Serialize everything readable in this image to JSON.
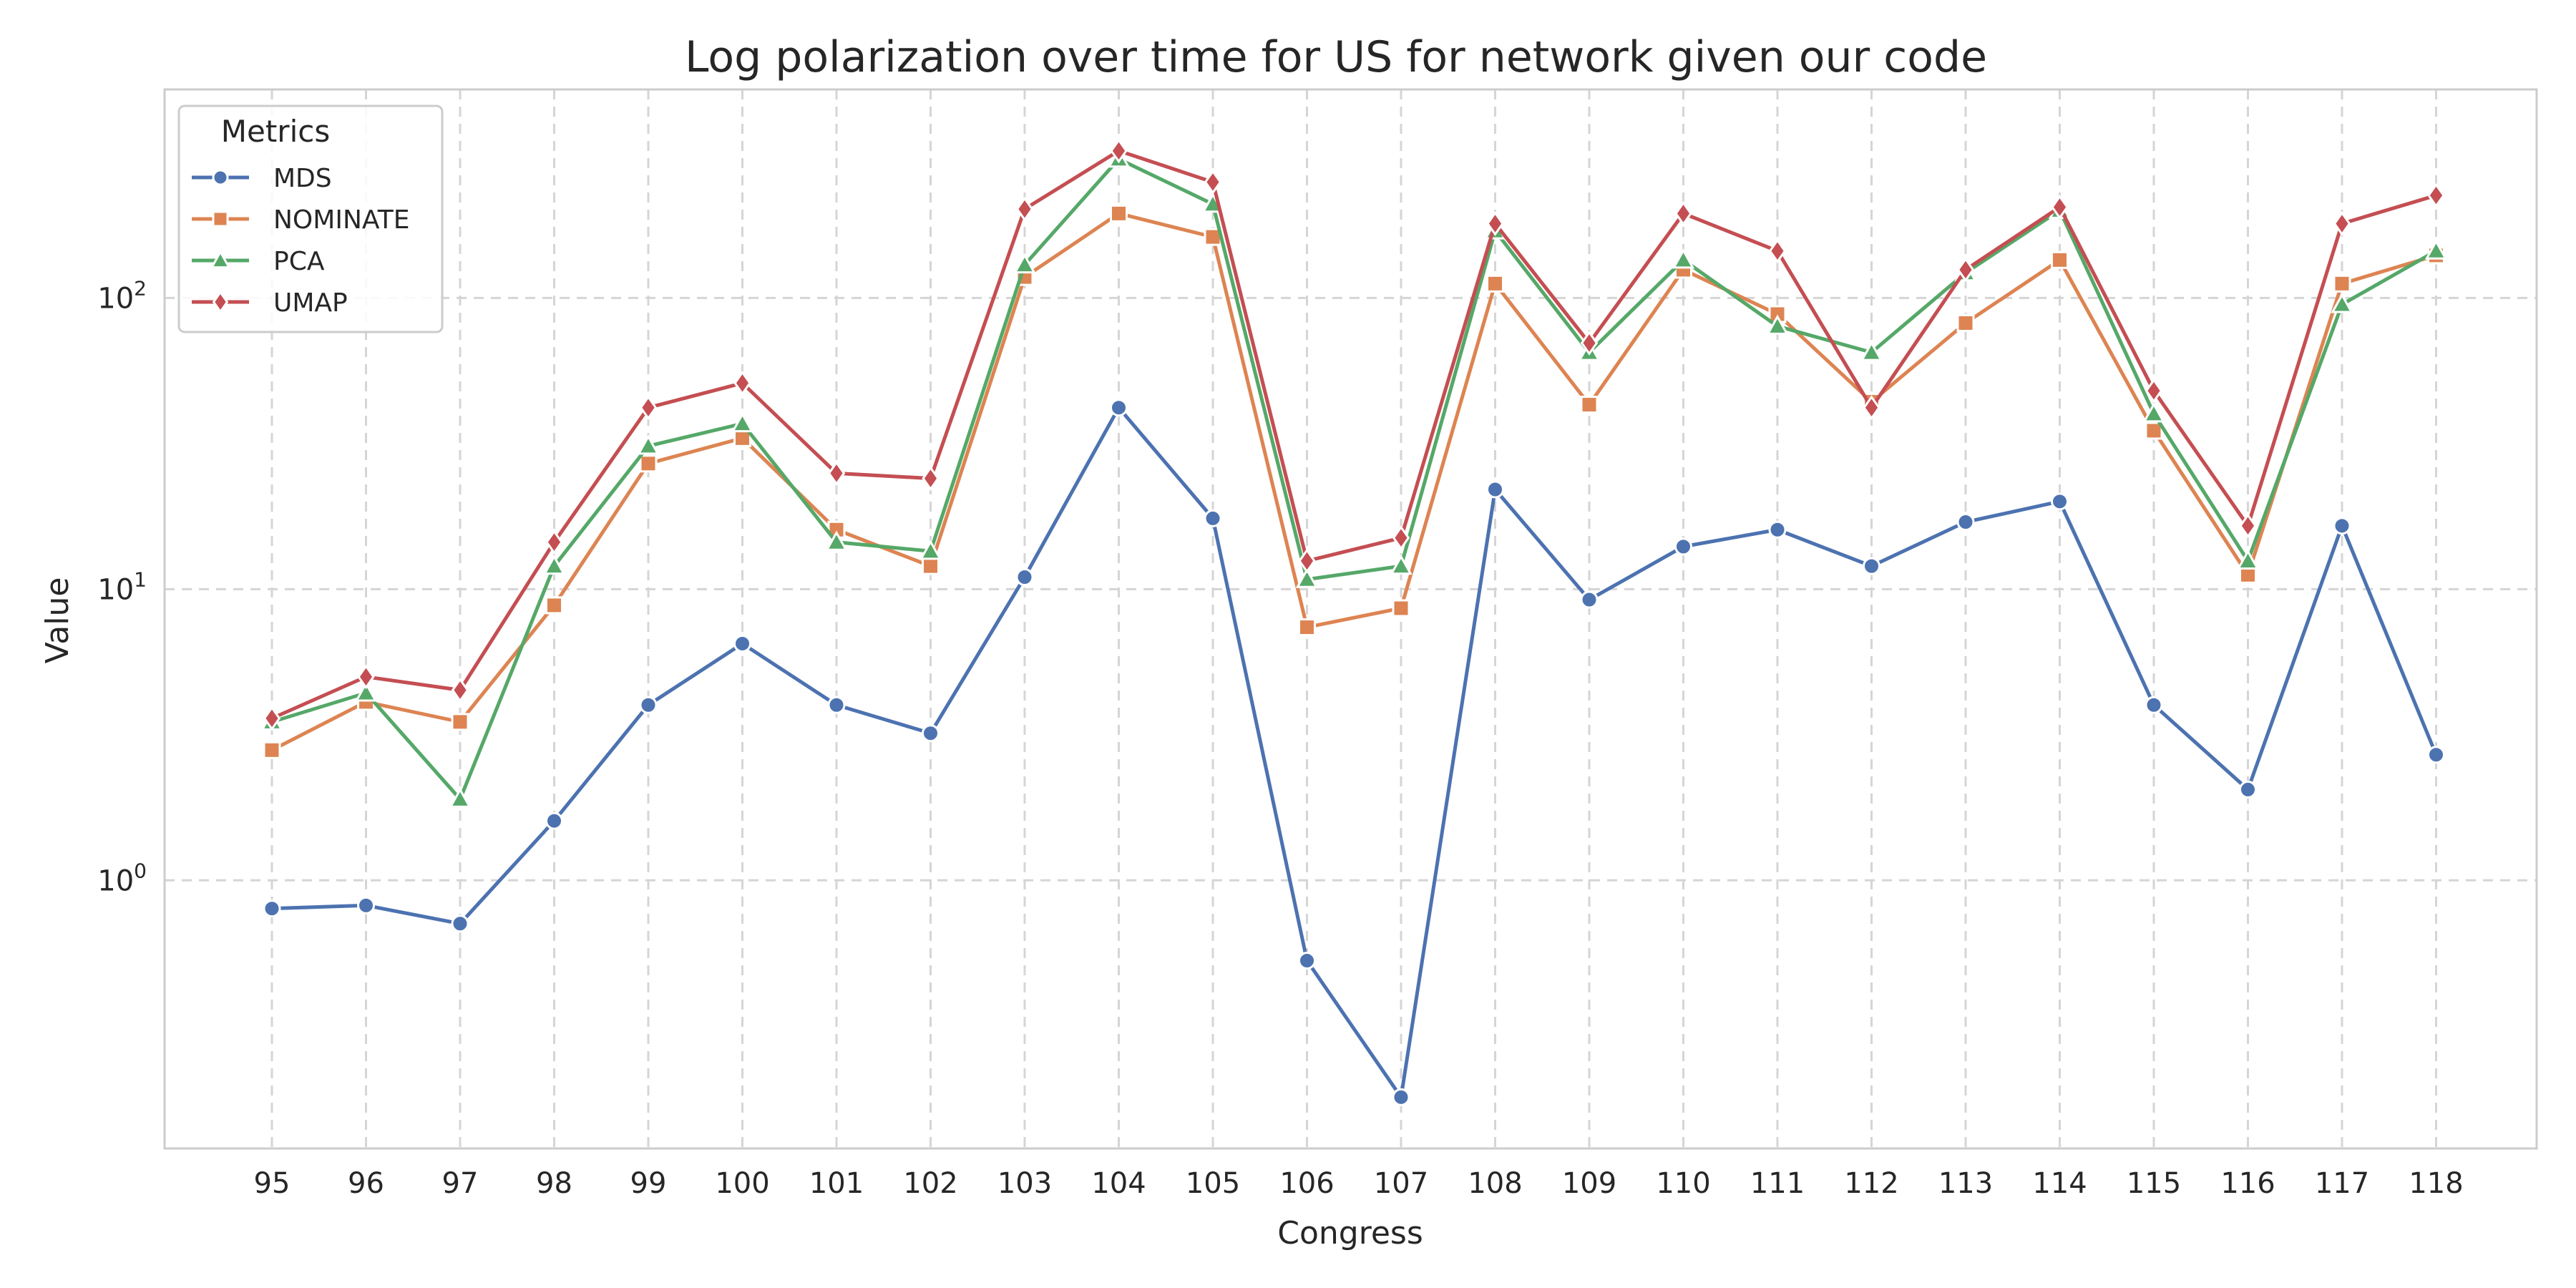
{
  "chart_data": {
    "type": "line",
    "title": "Log polarization over time for US for network given our code",
    "xlabel": "Congress",
    "ylabel": "Value",
    "yscale": "log",
    "ylim": [
      0.12,
      520
    ],
    "ytick_values": [
      1,
      10,
      100
    ],
    "ytick_labels": [
      {
        "base": "10",
        "exp": "0"
      },
      {
        "base": "10",
        "exp": "1"
      },
      {
        "base": "10",
        "exp": "2"
      }
    ],
    "grid": true,
    "legend": {
      "title": "Metrics",
      "position": "top-left"
    },
    "categories": [
      "95",
      "96",
      "97",
      "98",
      "99",
      "100",
      "101",
      "102",
      "103",
      "104",
      "105",
      "106",
      "107",
      "108",
      "109",
      "110",
      "111",
      "112",
      "113",
      "114",
      "115",
      "116",
      "117",
      "118"
    ],
    "series": [
      {
        "name": "MDS",
        "color": "#4c72b0",
        "marker": "circle",
        "values": [
          0.8,
          0.82,
          0.71,
          1.6,
          4.0,
          6.5,
          4.0,
          3.2,
          11,
          42,
          17.5,
          0.53,
          0.18,
          22,
          9.2,
          14,
          16,
          12,
          17,
          20,
          4.0,
          2.05,
          16.5,
          2.7
        ]
      },
      {
        "name": "NOMINATE",
        "color": "#dd8452",
        "marker": "square",
        "values": [
          2.8,
          4.1,
          3.5,
          8.8,
          27,
          33,
          16,
          12,
          118,
          195,
          162,
          7.4,
          8.6,
          112,
          43,
          125,
          88,
          44,
          82,
          135,
          35,
          11.2,
          112,
          140
        ]
      },
      {
        "name": "PCA",
        "color": "#55a868",
        "marker": "triangle",
        "values": [
          3.5,
          4.4,
          1.9,
          12,
          31,
          37,
          14.5,
          13.5,
          130,
          300,
          210,
          10.8,
          12,
          170,
          65,
          135,
          80,
          65,
          122,
          200,
          40,
          12.5,
          95,
          145
        ]
      },
      {
        "name": "UMAP",
        "color": "#c44e52",
        "marker": "diamond",
        "values": [
          3.6,
          5.0,
          4.5,
          14.5,
          42,
          51,
          25,
          24,
          202,
          320,
          250,
          12.5,
          15,
          180,
          70,
          195,
          145,
          42,
          125,
          205,
          48,
          16.5,
          180,
          225
        ]
      }
    ]
  }
}
